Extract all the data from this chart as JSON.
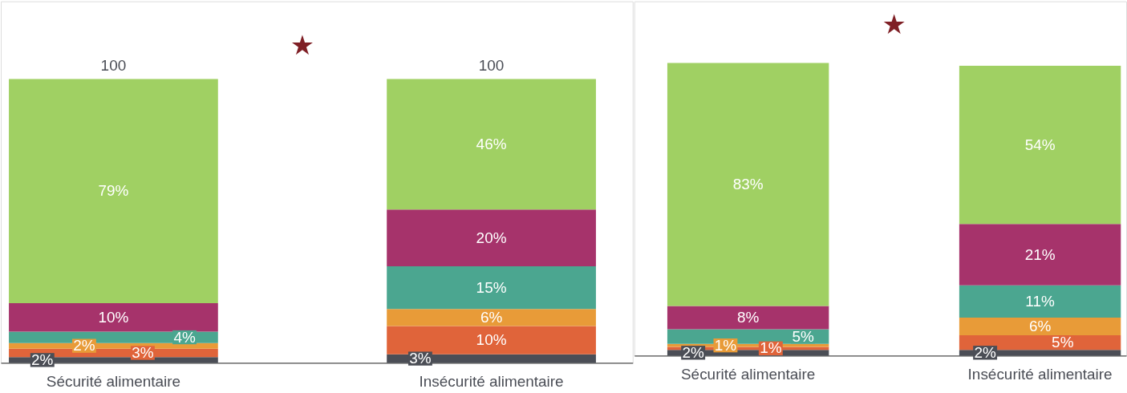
{
  "chart_data": [
    {
      "type": "bar",
      "stacked": true,
      "categories": [
        "Sécurité alimentaire",
        "Insécurité alimentaire"
      ],
      "tick_labels": "x",
      "series": [
        {
          "color": "#4b4e56",
          "values": [
            2,
            3
          ],
          "value_labels": [
            "2%",
            "3%"
          ]
        },
        {
          "color": "#e0643a",
          "values": [
            3,
            10
          ],
          "value_labels": [
            "3%",
            "10%"
          ]
        },
        {
          "color": "#e89b38",
          "values": [
            2,
            6
          ],
          "value_labels": [
            "2%",
            "6%"
          ]
        },
        {
          "color": "#4ba690",
          "values": [
            4,
            15
          ],
          "value_labels": [
            "4%",
            "15%"
          ]
        },
        {
          "color": "#a6336b",
          "values": [
            10,
            20
          ],
          "value_labels": [
            "10%",
            "20%"
          ]
        },
        {
          "color": "#a0d063",
          "values": [
            79,
            46
          ],
          "value_labels": [
            "79%",
            "46%"
          ]
        }
      ],
      "totals": [
        "100",
        "100"
      ],
      "annotations": [
        "★"
      ]
    },
    {
      "type": "bar",
      "stacked": true,
      "categories": [
        "Sécurité alimentaire",
        "Insécurité alimentaire"
      ],
      "tick_labels": "x",
      "series": [
        {
          "color": "#4b4e56",
          "values": [
            2,
            2
          ],
          "value_labels": [
            "2%",
            "2%"
          ]
        },
        {
          "color": "#e0643a",
          "values": [
            1,
            5
          ],
          "value_labels": [
            "1%",
            "5%"
          ]
        },
        {
          "color": "#e89b38",
          "values": [
            1,
            6
          ],
          "value_labels": [
            "1%",
            "6%"
          ]
        },
        {
          "color": "#4ba690",
          "values": [
            5,
            11
          ],
          "value_labels": [
            "5%",
            "11%"
          ]
        },
        {
          "color": "#a6336b",
          "values": [
            8,
            21
          ],
          "value_labels": [
            "8%",
            "21%"
          ]
        },
        {
          "color": "#a0d063",
          "values": [
            83,
            54
          ],
          "value_labels": [
            "83%",
            "54%"
          ]
        }
      ],
      "annotations": [
        "★"
      ]
    }
  ]
}
